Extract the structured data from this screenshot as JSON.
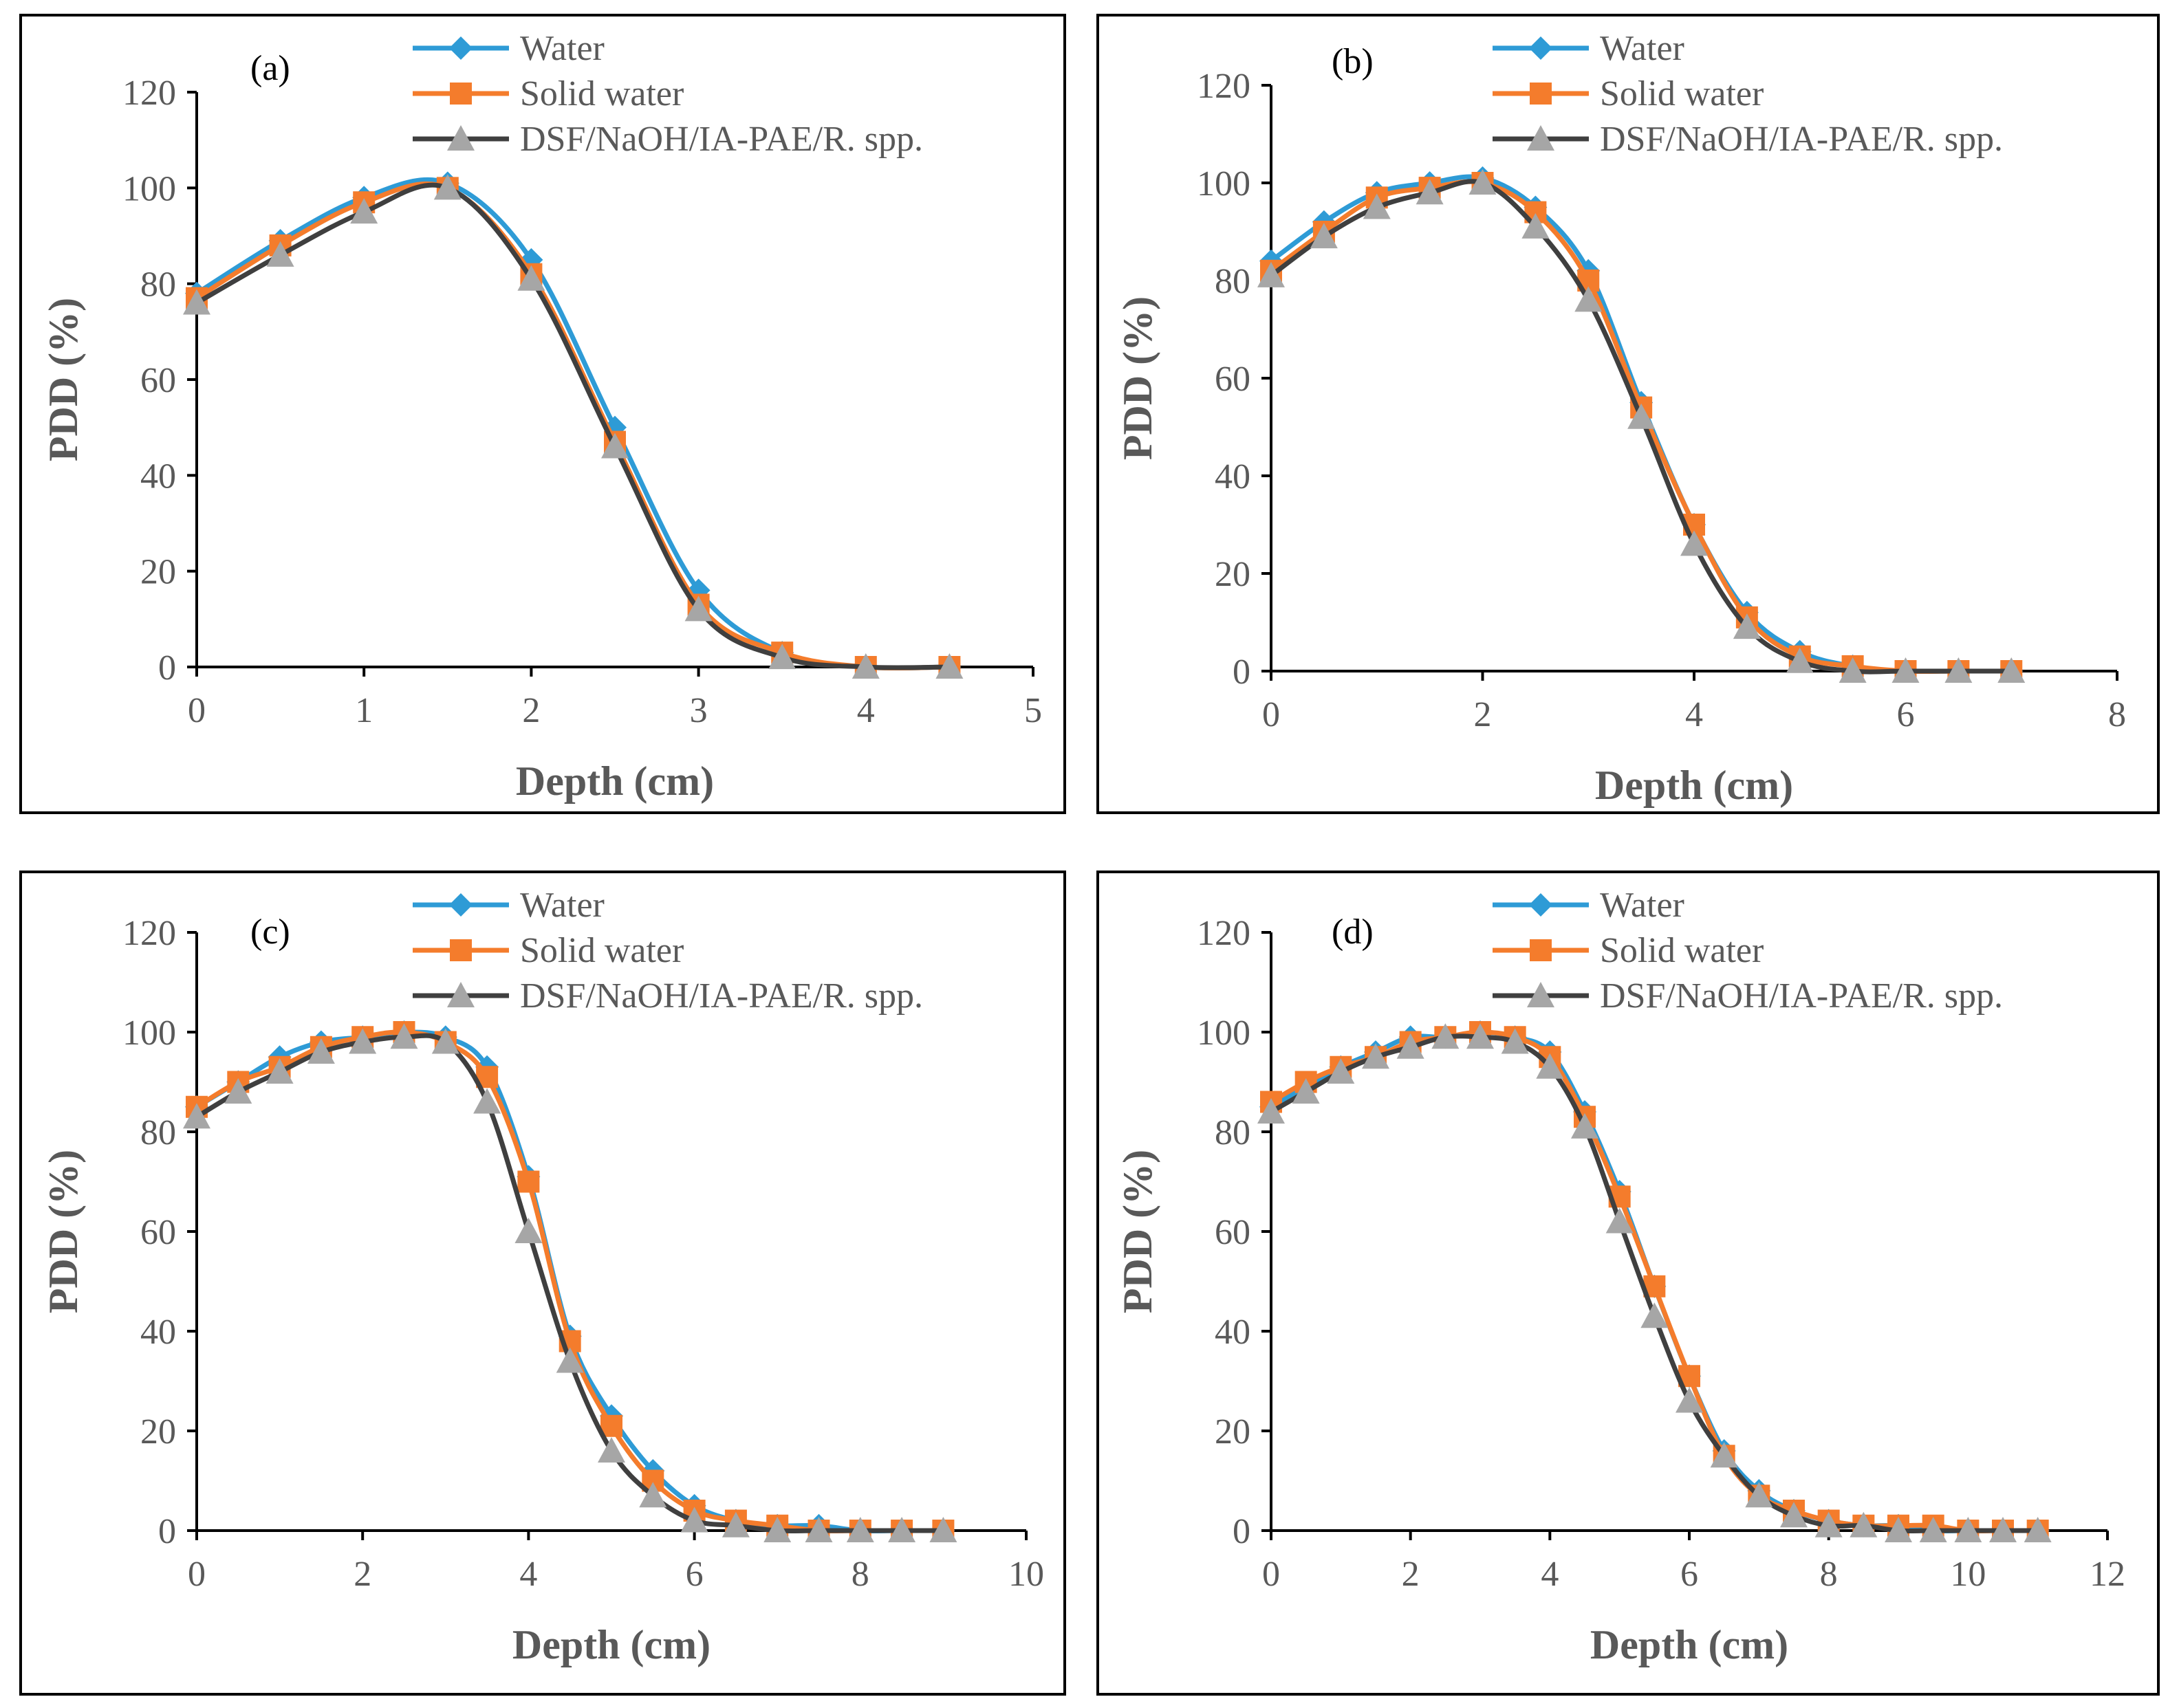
{
  "figure": {
    "series_styles": [
      {
        "key": "water",
        "color": "#2E9BD6",
        "marker": "diamond"
      },
      {
        "key": "solid",
        "color": "#F47C2C",
        "marker": "square"
      },
      {
        "key": "dsf",
        "color": "#3F3F3F",
        "marker_color": "#A6A6A6",
        "marker": "triangle"
      }
    ]
  },
  "chart_data": [
    {
      "type": "line",
      "panel_label": "(a)",
      "xlabel": "Depth (cm)",
      "ylabel": "PDD (%)",
      "xlim": [
        0,
        5
      ],
      "ylim": [
        0,
        120
      ],
      "xticks": [
        0,
        1,
        2,
        3,
        4,
        5
      ],
      "yticks": [
        0,
        20,
        40,
        60,
        80,
        100,
        120
      ],
      "x": [
        0,
        0.5,
        1,
        1.5,
        2,
        2.5,
        3,
        3.5,
        4,
        4.5
      ],
      "series": [
        {
          "name": "Water",
          "values": [
            78,
            89,
            98,
            101,
            85,
            50,
            16,
            3,
            0,
            0
          ]
        },
        {
          "name": "Solid water",
          "values": [
            77,
            88,
            97,
            100,
            82,
            47,
            13,
            3,
            0,
            0
          ]
        },
        {
          "name": "DSF/NaOH/IA-PAE/R. spp.",
          "values": [
            76,
            86,
            95,
            100,
            81,
            46,
            12,
            2,
            0,
            0
          ]
        }
      ],
      "legend": "top-center"
    },
    {
      "type": "line",
      "panel_label": "(b)",
      "xlabel": "Depth (cm)",
      "ylabel": "PDD (%)",
      "xlim": [
        0,
        8
      ],
      "ylim": [
        0,
        120
      ],
      "xticks": [
        0,
        2,
        4,
        6,
        8
      ],
      "yticks": [
        0,
        20,
        40,
        60,
        80,
        100,
        120
      ],
      "x": [
        0,
        0.5,
        1,
        1.5,
        2,
        2.5,
        3,
        3.5,
        4,
        4.5,
        5,
        5.5,
        6,
        6.5,
        7
      ],
      "series": [
        {
          "name": "Water",
          "values": [
            84,
            92,
            98,
            100,
            101,
            95,
            82,
            55,
            30,
            12,
            4,
            1,
            0,
            0,
            0
          ]
        },
        {
          "name": "Solid water",
          "values": [
            82,
            90,
            97,
            99,
            100,
            94,
            80,
            54,
            30,
            11,
            3,
            1,
            0,
            0,
            0
          ]
        },
        {
          "name": "DSF/NaOH/IA-PAE/R. spp.",
          "values": [
            81,
            89,
            95,
            98,
            100,
            91,
            76,
            52,
            26,
            9,
            2,
            0,
            0,
            0,
            0
          ]
        }
      ],
      "legend": "top-center"
    },
    {
      "type": "line",
      "panel_label": "(c)",
      "xlabel": "Depth (cm)",
      "ylabel": "PDD (%)",
      "xlim": [
        0,
        10
      ],
      "ylim": [
        0,
        120
      ],
      "xticks": [
        0,
        2,
        4,
        6,
        8,
        10
      ],
      "yticks": [
        0,
        20,
        40,
        60,
        80,
        100,
        120
      ],
      "x": [
        0,
        0.5,
        1,
        1.5,
        2,
        2.5,
        3,
        3.5,
        4,
        4.5,
        5,
        5.5,
        6,
        6.5,
        7,
        7.5,
        8,
        8.5,
        9
      ],
      "series": [
        {
          "name": "Water",
          "values": [
            85,
            90,
            95,
            98,
            99,
            100,
            99,
            93,
            71,
            39,
            23,
            12,
            5,
            2,
            1,
            1,
            0,
            0,
            0
          ]
        },
        {
          "name": "Solid water",
          "values": [
            85,
            90,
            93,
            97,
            99,
            100,
            98,
            91,
            70,
            38,
            21,
            10,
            4,
            2,
            1,
            0,
            0,
            0,
            0
          ]
        },
        {
          "name": "DSF/NaOH/IA-PAE/R. spp.",
          "values": [
            83,
            88,
            92,
            96,
            98,
            99,
            98,
            86,
            60,
            34,
            16,
            7,
            2,
            1,
            0,
            0,
            0,
            0,
            0
          ]
        }
      ],
      "legend": "top-center"
    },
    {
      "type": "line",
      "panel_label": "(d)",
      "xlabel": "Depth (cm)",
      "ylabel": "PDD (%)",
      "xlim": [
        0,
        12
      ],
      "ylim": [
        0,
        120
      ],
      "xticks": [
        0,
        2,
        4,
        6,
        8,
        10,
        12
      ],
      "yticks": [
        0,
        20,
        40,
        60,
        80,
        100,
        120
      ],
      "x": [
        0,
        0.5,
        1,
        1.5,
        2,
        2.5,
        3,
        3.5,
        4,
        4.5,
        5,
        5.5,
        6,
        6.5,
        7,
        7.5,
        8,
        8.5,
        9,
        9.5,
        10,
        10.5,
        11
      ],
      "series": [
        {
          "name": "Water",
          "values": [
            85,
            89,
            93,
            96,
            99,
            99,
            100,
            99,
            96,
            84,
            68,
            49,
            31,
            16,
            8,
            4,
            2,
            1,
            1,
            0,
            0,
            0,
            0
          ]
        },
        {
          "name": "Solid water",
          "values": [
            86,
            90,
            93,
            95,
            98,
            99,
            100,
            99,
            95,
            83,
            67,
            49,
            31,
            15,
            7,
            4,
            2,
            1,
            1,
            1,
            0,
            0,
            0
          ]
        },
        {
          "name": "DSF/NaOH/IA-PAE/R. spp.",
          "values": [
            84,
            88,
            92,
            95,
            97,
            99,
            99,
            98,
            93,
            81,
            62,
            43,
            26,
            15,
            7,
            3,
            1,
            1,
            0,
            0,
            0,
            0,
            0
          ]
        }
      ],
      "legend": "top-center"
    }
  ]
}
